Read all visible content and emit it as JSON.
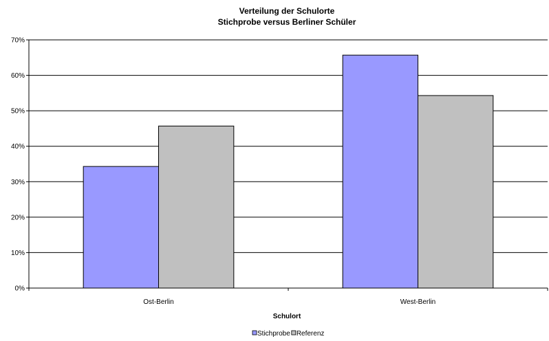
{
  "chart_data": {
    "type": "bar",
    "title": "Verteilung der Schulorte",
    "subtitle": "Stichprobe versus Berliner Schüler",
    "xlabel": "Schulort",
    "ylabel": "",
    "categories": [
      "Ost-Berlin",
      "West-Berlin"
    ],
    "series": [
      {
        "name": "Stichprobe",
        "values": [
          34.3,
          65.7
        ],
        "color": "#9999ff"
      },
      {
        "name": "Referenz",
        "values": [
          45.7,
          54.3
        ],
        "color": "#c0c0c0"
      }
    ],
    "ylim": [
      0,
      70
    ],
    "yticks": [
      "0%",
      "10%",
      "20%",
      "30%",
      "40%",
      "50%",
      "60%",
      "70%"
    ],
    "grid": true,
    "legend_position": "bottom-center"
  }
}
